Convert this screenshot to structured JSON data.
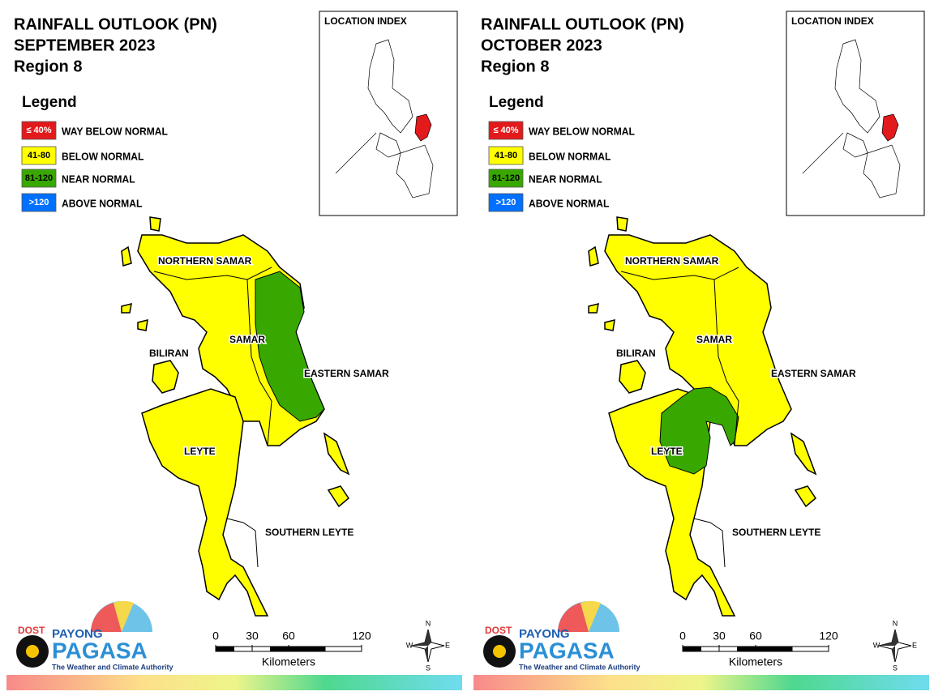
{
  "panels": [
    {
      "title": [
        "RAINFALL OUTLOOK (PN)",
        "SEPTEMBER 2023",
        "Region 8"
      ],
      "legend": {
        "title": "Legend",
        "items": [
          {
            "key": "≤ 40%",
            "label": "WAY BELOW NORMAL",
            "color": "#e31a1c"
          },
          {
            "key": "41-80",
            "label": "BELOW NORMAL",
            "color": "#ffff00"
          },
          {
            "key": "81-120",
            "label": "NEAR NORMAL",
            "color": "#38a800"
          },
          {
            "key": ">120",
            "label": "ABOVE NORMAL",
            "color": "#0070ff"
          }
        ]
      },
      "location_index": "LOCATION INDEX",
      "regions": [
        "NORTHERN SAMAR",
        "SAMAR",
        "BILIRAN",
        "EASTERN SAMAR",
        "LEYTE",
        "SOUTHERN LEYTE"
      ],
      "scale": {
        "ticks": [
          0,
          30,
          60,
          120
        ],
        "unit": "Kilometers"
      },
      "compass": [
        "N",
        "E",
        "S",
        "W"
      ],
      "logo": {
        "agency": "DOST",
        "line1": "PAYONG",
        "line2": "PAGASA",
        "tagline": "The Weather and Climate Authority"
      }
    },
    {
      "title": [
        "RAINFALL OUTLOOK (PN)",
        "OCTOBER 2023",
        "Region 8"
      ],
      "legend": {
        "title": "Legend",
        "items": [
          {
            "key": "≤ 40%",
            "label": "WAY BELOW NORMAL",
            "color": "#e31a1c"
          },
          {
            "key": "41-80",
            "label": "BELOW NORMAL",
            "color": "#ffff00"
          },
          {
            "key": "81-120",
            "label": "NEAR NORMAL",
            "color": "#38a800"
          },
          {
            "key": ">120",
            "label": "ABOVE NORMAL",
            "color": "#0070ff"
          }
        ]
      },
      "location_index": "LOCATION INDEX",
      "regions": [
        "NORTHERN SAMAR",
        "SAMAR",
        "BILIRAN",
        "EASTERN SAMAR",
        "LEYTE",
        "SOUTHERN LEYTE"
      ],
      "scale": {
        "ticks": [
          0,
          30,
          60,
          120
        ],
        "unit": "Kilometers"
      },
      "compass": [
        "N",
        "E",
        "S",
        "W"
      ],
      "logo": {
        "agency": "DOST",
        "line1": "PAYONG",
        "line2": "PAGASA",
        "tagline": "The Weather and Climate Authority"
      }
    }
  ]
}
